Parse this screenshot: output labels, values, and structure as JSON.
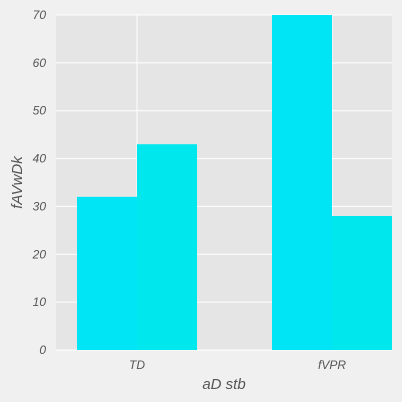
{
  "chart_data": {
    "type": "bar",
    "categories": [
      "TD",
      "fVPR"
    ],
    "series": [
      {
        "values": [
          32,
          70
        ]
      },
      {
        "values": [
          43,
          28
        ]
      }
    ],
    "bar_groups_note": null,
    "xlabel": "aD stb",
    "ylabel": "fAVwDk",
    "ylim": [
      0,
      70
    ],
    "yticks": [
      0,
      10,
      20,
      30,
      40,
      50,
      60,
      70
    ],
    "grid": true,
    "legend": "none",
    "colors": {
      "background": "#f0f0f0",
      "plot_background": "#e5e5e5",
      "grid": "#ffffff",
      "bar": "#00e5f5",
      "bar_alt": "#00e8ee",
      "text": "#555555"
    }
  }
}
